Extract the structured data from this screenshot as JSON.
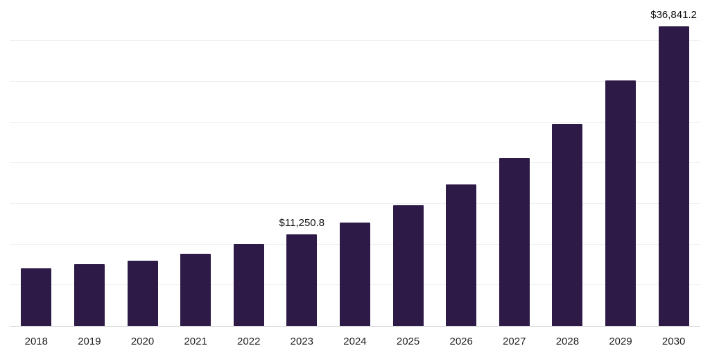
{
  "chart_data": {
    "type": "bar",
    "title": "",
    "xlabel": "",
    "ylabel": "",
    "categories": [
      "2018",
      "2019",
      "2020",
      "2021",
      "2022",
      "2023",
      "2024",
      "2025",
      "2026",
      "2027",
      "2028",
      "2029",
      "2030"
    ],
    "values": [
      7100,
      7590,
      8020,
      8870,
      10060,
      11250.8,
      12730,
      14830,
      17380,
      20630,
      24800,
      30180,
      36841.2
    ],
    "data_labels": [
      "",
      "",
      "",
      "",
      "",
      "$11,250.8",
      "",
      "",
      "",
      "",
      "",
      "",
      "$36,841.2"
    ],
    "bar_color": "#2e1a47",
    "ylim": [
      0,
      39200
    ],
    "grid": true,
    "grid_interval": 5000,
    "grid_color": "#f0f0f0",
    "axis_line_color": "#cccccc",
    "legend_position": "none"
  }
}
